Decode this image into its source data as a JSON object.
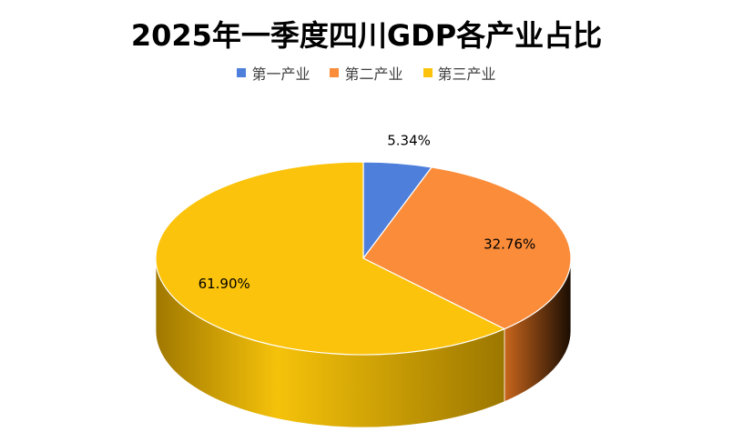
{
  "chart_data": {
    "type": "pie",
    "title": "2025年一季度四川GDP各产业占比",
    "categories": [
      "第一产业",
      "第二产业",
      "第三产业"
    ],
    "values": [
      5.34,
      32.76,
      61.9
    ],
    "labels": [
      "5.34%",
      "32.76%",
      "61.90%"
    ],
    "colors": [
      "#4e7fdb",
      "#fb8c3a",
      "#fbc30b"
    ],
    "side_colors": [
      "#2f56a8",
      "#b05a18",
      "#c69600"
    ],
    "legend_position": "top",
    "style": "3d"
  }
}
